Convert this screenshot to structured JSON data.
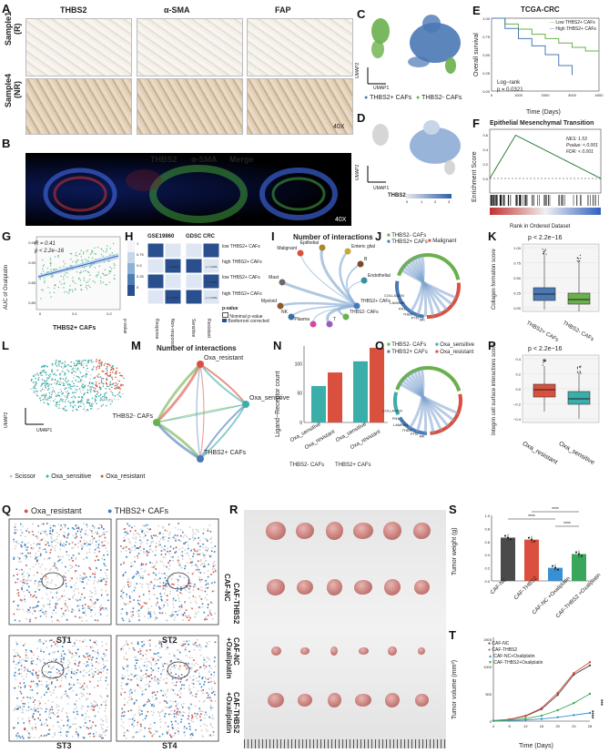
{
  "labels": {
    "A": "A",
    "B": "B",
    "C": "C",
    "D": "D",
    "E": "E",
    "F": "F",
    "G": "G",
    "H": "H",
    "I": "I",
    "J": "J",
    "K": "K",
    "L": "L",
    "M": "M",
    "N": "N",
    "O": "O",
    "P": "P",
    "Q": "Q",
    "R": "R",
    "S": "S",
    "T": "T"
  },
  "panelA": {
    "cols": [
      "THBS2",
      "α-SMA",
      "FAP"
    ],
    "rows": [
      "Sample1\n(R)",
      "Sample4\n(NR)"
    ],
    "row1": "Sample1",
    "row1b": "(R)",
    "row2": "Sample4",
    "row2b": "(NR)",
    "mag": "40X"
  },
  "panelB": {
    "thbs2": "THBS2",
    "asma": "α-SMA",
    "merge": "Merge",
    "mag": "40X",
    "colors": {
      "thbs2": "#e0282a",
      "asma": "#3fa34d",
      "merge": "#2f64c8"
    }
  },
  "panelC": {
    "xlabel": "UMAP1",
    "ylabel": "UMAP2",
    "legend": [
      "THBS2+ CAFs",
      "THBS2- CAFs"
    ],
    "colors": [
      "#4a78b5",
      "#6ab04c"
    ]
  },
  "panelD": {
    "xlabel": "UMAP1",
    "ylabel": "UMAP2",
    "legend_title": "THBS2",
    "ticks": [
      "0",
      "1",
      "2",
      "3"
    ]
  },
  "panelE": {
    "title": "TCGA-CRC",
    "ylabel": "Overall survival",
    "xlabel": "Time (Days)",
    "legend": [
      "Low THBS2+ CAFs",
      "High THBS2+ CAFs"
    ],
    "stat1": "Log−rank",
    "stat2": "p = 0.0321",
    "colors": [
      "#6ab04c",
      "#4a78b5"
    ],
    "chart_data": {
      "type": "line",
      "series": [
        {
          "name": "Low THBS2+ CAFs",
          "x": [
            0,
            500,
            1000,
            1500,
            2000,
            2500,
            3000,
            3500,
            4000
          ],
          "y": [
            1.0,
            0.92,
            0.85,
            0.78,
            0.72,
            0.66,
            0.6,
            0.55,
            0.52
          ]
        },
        {
          "name": "High THBS2+ CAFs",
          "x": [
            0,
            500,
            1000,
            1500,
            2000,
            2500,
            3000
          ],
          "y": [
            1.0,
            0.86,
            0.72,
            0.62,
            0.5,
            0.35,
            0.22
          ]
        }
      ],
      "xlim": [
        0,
        4000
      ],
      "ylim": [
        0,
        1.0
      ],
      "xticks": [
        "0",
        "1000",
        "2000",
        "3000",
        "4000"
      ],
      "yticks": [
        "0.00",
        "0.25",
        "0.50",
        "0.75",
        "1.00"
      ]
    }
  },
  "panelF": {
    "title": "Epithelial Mesenchymal Transition",
    "ylabel": "Enrichment Score",
    "xlabel": "Rank in Ordered Dataset",
    "nes": "NES: 1.53",
    "pval": "Pvalue: < 0.001",
    "fdr": "FDR: < 0.001",
    "yticks": [
      "0.6",
      "0.4",
      "0.2",
      "0.0"
    ]
  },
  "panelG": {
    "r": "R = 0.41",
    "p": "p < 2.2e−16",
    "xlabel": "THBS2+ CAFs",
    "ylabel": "AUC of Oxaliplatin",
    "yticks": [
      "0.95",
      "0.90",
      "0.85",
      "0.80"
    ],
    "xticks": [
      "0",
      "0.1",
      "0.2"
    ]
  },
  "panelH": {
    "title1": "GSE19860",
    "title2": "GDSC CRC",
    "rows": [
      "low THBS2+ CAFs",
      "high THBS2+ CAFs",
      "low THBS2+ CAFs",
      "high THBS2+ CAFs"
    ],
    "pvals": [
      "p = 0.009",
      "p = 0.029",
      "p = 0.046",
      "p = 0.002",
      "p = 0.002"
    ],
    "xcat": [
      "p-value",
      "Response",
      "Non-response",
      "Sensitive",
      "Resistant"
    ],
    "legend_title": "p-value",
    "legend": [
      "Nominal p-value",
      "Bonferroni corrected"
    ],
    "scale": [
      "1",
      "0.75",
      "0.5",
      "0.25",
      "0"
    ]
  },
  "panelI": {
    "title": "Number of interactions",
    "nodes": [
      "Malignant",
      "Epithelial",
      "Enteric glial",
      "B",
      "Endothelial",
      "Mast",
      "Myeloid",
      "NK",
      "Plasma",
      "T",
      "THBS2- CAFs",
      "THBS2+ CAFs"
    ]
  },
  "panelJ": {
    "legend": [
      "THBS2- CAFs",
      "THBS2+ CAFs",
      "Malignant"
    ],
    "genes": [
      "MK",
      "PTN",
      "THBS",
      "FN1",
      "LAMININ",
      "COLLAGEN",
      "LAMININ",
      "FN1",
      "THBS",
      "MK",
      "COLLAGEN"
    ]
  },
  "panelK": {
    "title": "p < 2.2e−16",
    "ylabel": "Collagen formation score",
    "cats": [
      "THBS2+ CAFs",
      "THBS2- CAFs"
    ],
    "yticks": [
      "1.00",
      "0.75",
      "0.50",
      "0.25",
      "0.00"
    ],
    "colors": [
      "#4a78b5",
      "#6ab04c"
    ]
  },
  "panelL": {
    "xlabel": "UMAP1",
    "ylabel": "UMAP2",
    "legend": [
      "Scissor",
      "Oxa_sensitive",
      "Oxa_resistant"
    ],
    "colors": [
      "#c8c8c8",
      "#3aafa9",
      "#d9503f"
    ]
  },
  "panelM": {
    "title": "Number of interactions",
    "nodes": [
      "Oxa_resistant",
      "Oxa_sensitive",
      "THBS2- CAFs",
      "THBS2+ CAFs"
    ]
  },
  "panelN": {
    "ylabel": "Ligand−Receptor count",
    "groups": [
      "THBS2- CAFs",
      "THBS2+ CAFs"
    ],
    "cats": [
      "Oxa_sensitive",
      "Oxa_resistant",
      "Oxa_sensitive",
      "Oxa_resistant"
    ],
    "yticks": [
      "100",
      "50",
      "0"
    ],
    "chart_data": {
      "type": "bar",
      "categories": [
        "THBS2- CAFs",
        "THBS2+ CAFs"
      ],
      "series": [
        {
          "name": "Oxa_sensitive",
          "values": [
            62,
            104
          ]
        },
        {
          "name": "Oxa_resistant",
          "values": [
            85,
            127
          ]
        }
      ],
      "ylim": [
        0,
        130
      ]
    }
  },
  "panelO": {
    "legend": [
      "THBS2- CAFs",
      "Oxa_sensitive",
      "THBS2+ CAFs",
      "Oxa_resistant"
    ],
    "genes": [
      "MK",
      "PTN",
      "THBS",
      "LAMININ",
      "FN1",
      "COLLAGEN",
      "COLLAGEN",
      "LAMININ",
      "FN1",
      "THBS",
      "MK"
    ]
  },
  "panelP": {
    "title": "p < 2.2e−16",
    "ylabel": "Integrin cell surface interactions score",
    "cats": [
      "Oxa_resistant",
      "Oxa_sensitive"
    ],
    "yticks": [
      "0.4",
      "0.2",
      "0.0",
      "−0.2",
      "−0.4"
    ],
    "colors": [
      "#d9503f",
      "#3aafa9"
    ]
  },
  "panelQ": {
    "legend": [
      "Oxa_resistant",
      "THBS2+ CAFs"
    ],
    "samples": [
      "ST1",
      "ST2",
      "ST3",
      "ST4"
    ],
    "colors": [
      "#d9503f",
      "#3a7fc1"
    ]
  },
  "panelR": {
    "rows": [
      "CAF-NC",
      "CAF-THBS2",
      "CAF-NC\n+Oxaliplatin",
      "CAF-THBS2\n+Oxaliplatin"
    ],
    "row3a": "CAF-NC",
    "row3b": "+Oxaliplatin",
    "row4a": "CAF-THBS2",
    "row4b": "+Oxaliplatin"
  },
  "panelS": {
    "ylabel": "Tumor weight (g)",
    "cats": [
      "CAF-NC",
      "CAF-THBS2",
      "CAF-NC\n+Oxaliplatin",
      "CAF-THBS2\n+Oxaliplatin"
    ],
    "sig": "****",
    "yticks": [
      "1.0",
      "0.8",
      "0.6",
      "0.4",
      "0.2",
      "0.0"
    ],
    "chart_data": {
      "type": "bar",
      "categories": [
        "CAF-NC",
        "CAF-THBS2",
        "CAF-NC +Oxaliplatin",
        "CAF-THBS2 +Oxaliplatin"
      ],
      "values": [
        0.66,
        0.63,
        0.2,
        0.41
      ],
      "ylim": [
        0,
        1.0
      ]
    },
    "colors": [
      "#4a4a4a",
      "#d9503f",
      "#3a8fd0",
      "#3aa65c"
    ]
  },
  "panelT": {
    "ylabel": "Tumor volume (mm³)",
    "xlabel": "Time (Days)",
    "legend": [
      "CAF-NC",
      "CAF-THBS2",
      "CAF-NC+Oxaliplatin",
      "CAF-THBS2+Oxaliplatin"
    ],
    "sig1": "****",
    "sig2": "***",
    "xticks": [
      "4",
      "8",
      "12",
      "16",
      "20",
      "24",
      "28"
    ],
    "yticks": [
      "1500",
      "1000",
      "500",
      "0"
    ],
    "chart_data": {
      "type": "line",
      "x": [
        4,
        8,
        12,
        16,
        20,
        24,
        28
      ],
      "series": [
        {
          "name": "CAF-NC",
          "values": [
            10,
            30,
            90,
            220,
            480,
            850,
            1020
          ]
        },
        {
          "name": "CAF-THBS2",
          "values": [
            10,
            35,
            100,
            240,
            520,
            880,
            1080
          ]
        },
        {
          "name": "CAF-NC+Oxaliplatin",
          "values": [
            5,
            10,
            20,
            40,
            70,
            110,
            150
          ]
        },
        {
          "name": "CAF-THBS2+Oxaliplatin",
          "values": [
            8,
            20,
            45,
            100,
            200,
            330,
            500
          ]
        }
      ],
      "xlim": [
        4,
        28
      ],
      "ylim": [
        0,
        1500
      ]
    },
    "colors": [
      "#4a4a4a",
      "#d9503f",
      "#3a8fd0",
      "#3aa65c"
    ]
  }
}
